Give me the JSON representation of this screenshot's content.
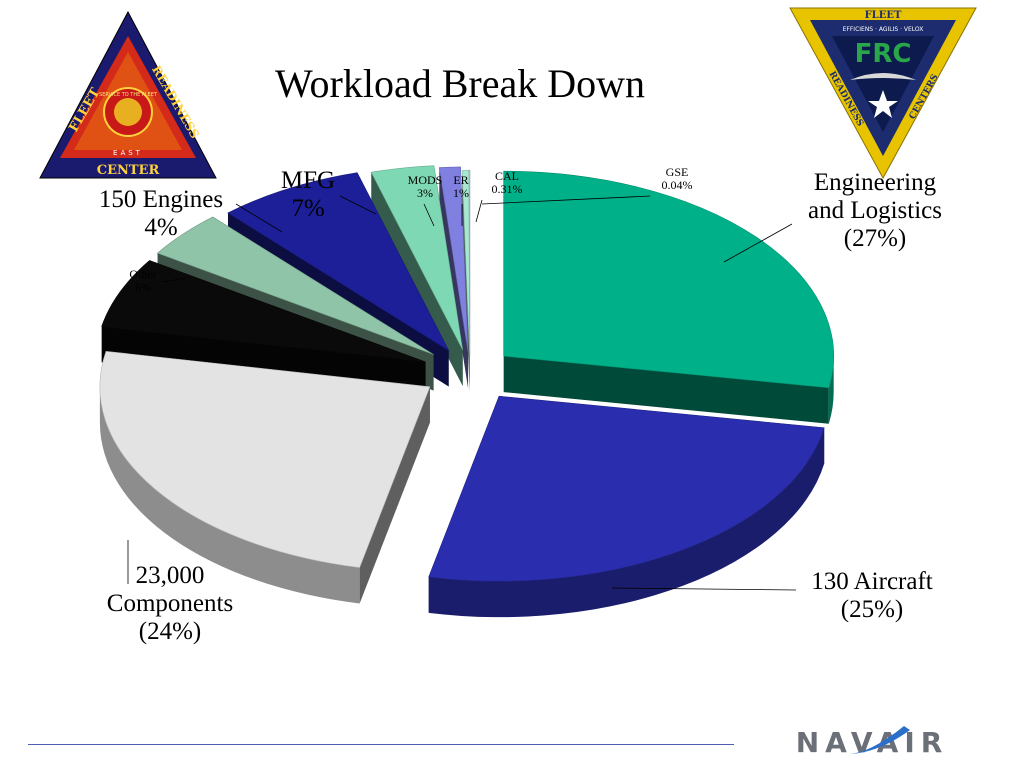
{
  "slide": {
    "title": "Workload Break Down"
  },
  "logos": {
    "left": {
      "top_left_text": "FLEET",
      "top_right_text": "READINESS",
      "band_text": "EAST",
      "bottom_text": "CENTER",
      "seal_text": "SERVICE TO THE FLEET"
    },
    "right": {
      "top_text": "FLEET",
      "motto": "EFFICIENS · AGILIS · VELOX",
      "monogram": "FRC",
      "left_text": "READINESS",
      "right_text": "CENTERS"
    }
  },
  "chart_data": {
    "type": "pie",
    "style": "3d-exploded",
    "slices": [
      {
        "label": "Engineering and Logistics",
        "value": 27,
        "pct": "27%",
        "color": "#00b088"
      },
      {
        "label": "130 Aircraft",
        "value": 25,
        "pct": "25%",
        "color": "#2a2eae"
      },
      {
        "label": "23,000 Components",
        "value": 24,
        "pct": "24%",
        "color": "#e3e3e3"
      },
      {
        "label": "Other",
        "value": 6,
        "pct": "6%",
        "color": "#0a0a0a"
      },
      {
        "label": "150 Engines",
        "value": 4,
        "pct": "4%",
        "color": "#8fc4a8"
      },
      {
        "label": "MFG",
        "value": 7,
        "pct": "7%",
        "color": "#1c1f98"
      },
      {
        "label": "MODS",
        "value": 3,
        "pct": "3%",
        "color": "#7fd8b4"
      },
      {
        "label": "ER",
        "value": 1,
        "pct": "1%",
        "color": "#8080e0"
      },
      {
        "label": "CAL",
        "value": 0.31,
        "pct": "0.31%",
        "color": "#a8e8d0"
      },
      {
        "label": "GSE",
        "value": 0.04,
        "pct": "0.04%",
        "color": "#c8c8f0"
      }
    ]
  },
  "labels": {
    "engineering": [
      "Engineering",
      "and Logistics",
      "(27%)"
    ],
    "aircraft": [
      "130 Aircraft",
      "(25%)"
    ],
    "components": [
      "23,000",
      "Components",
      "(24%)"
    ],
    "other": [
      "Other",
      "6%"
    ],
    "engines": [
      "150 Engines",
      "4%"
    ],
    "mfg": [
      "MFG",
      "7%"
    ],
    "mods": [
      "MODS",
      "3%"
    ],
    "er": [
      "ER",
      "1%"
    ],
    "cal": [
      "CAL",
      "0.31%"
    ],
    "gse": [
      "GSE",
      "0.04%"
    ]
  },
  "footer": {
    "brand": "NAVAIR"
  }
}
